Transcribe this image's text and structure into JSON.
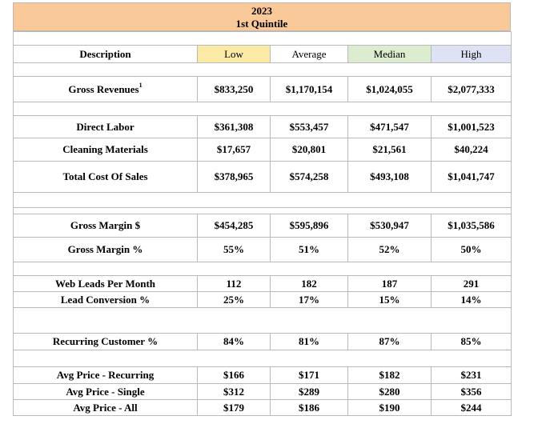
{
  "title": {
    "year": "2023",
    "subtitle": "1st Quintile"
  },
  "headers": {
    "description": "Description",
    "low": "Low",
    "average": "Average",
    "median": "Median",
    "high": "High"
  },
  "rows": {
    "gross_revenues": {
      "label": "Gross Revenues",
      "footnote": "1",
      "low": "$833,250",
      "average": "$1,170,154",
      "median": "$1,024,055",
      "high": "$2,077,333"
    },
    "direct_labor": {
      "label": "Direct Labor",
      "low": "$361,308",
      "average": "$553,457",
      "median": "$471,547",
      "high": "$1,001,523"
    },
    "cleaning_materials": {
      "label": "Cleaning Materials",
      "low": "$17,657",
      "average": "$20,801",
      "median": "$21,561",
      "high": "$40,224"
    },
    "total_cost_of_sales": {
      "label": "Total Cost Of Sales",
      "low": "$378,965",
      "average": "$574,258",
      "median": "$493,108",
      "high": "$1,041,747"
    },
    "gross_margin_dollars": {
      "label": "Gross Margin $",
      "low": "$454,285",
      "average": "$595,896",
      "median": "$530,947",
      "high": "$1,035,586"
    },
    "gross_margin_percent": {
      "label": "Gross Margin %",
      "low": "55%",
      "average": "51%",
      "median": "52%",
      "high": "50%"
    },
    "web_leads": {
      "label": "Web Leads Per Month",
      "low": "112",
      "average": "182",
      "median": "187",
      "high": "291"
    },
    "lead_conversion": {
      "label": "Lead Conversion %",
      "low": "25%",
      "average": "17%",
      "median": "15%",
      "high": "14%"
    },
    "recurring_customer": {
      "label": "Recurring Customer %",
      "low": "84%",
      "average": "81%",
      "median": "87%",
      "high": "85%"
    },
    "avg_price_recurring": {
      "label": "Avg Price - Recurring",
      "low": "$166",
      "average": "$171",
      "median": "$182",
      "high": "$231"
    },
    "avg_price_single": {
      "label": "Avg Price - Single",
      "low": "$312",
      "average": "$289",
      "median": "$280",
      "high": "$356"
    },
    "avg_price_all": {
      "label": "Avg Price - All",
      "low": "$179",
      "average": "$186",
      "median": "$190",
      "high": "$244"
    }
  },
  "colors": {
    "title_bg": "#f9c99a",
    "low_bg": "#fbeaa5",
    "median_bg": "#dceccf",
    "high_bg": "#dde3f5",
    "border": "#b9b9b9"
  }
}
